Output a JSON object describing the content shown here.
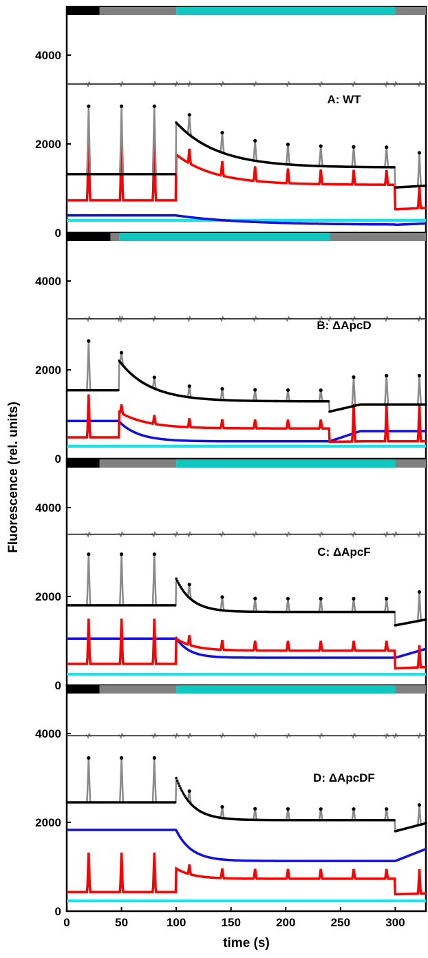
{
  "colors": {
    "measured": "#000000",
    "fitted": "#8a8a8a",
    "residual": "#8a8a8a",
    "red": "#ff0000",
    "blue": "#1010e0",
    "cyan": "#10e8f0",
    "bar_dark": "#000000",
    "bar_gray": "#808080",
    "bar_actinic": "#10c8c0"
  },
  "chart_data": {
    "type": "line",
    "xlabel": "time (s)",
    "ylabel": "Fluorescence (rel. units)",
    "xlim": [
      0,
      328
    ],
    "ylim": [
      0,
      4900
    ],
    "x_ticks": [
      0,
      50,
      100,
      150,
      200,
      250,
      300
    ],
    "y_ticks": [
      0,
      2000,
      4000
    ],
    "pulse_times": [
      20,
      50,
      80,
      112,
      142,
      172,
      202,
      232,
      262,
      292,
      322
    ],
    "panels": [
      {
        "label": "A: WT",
        "light_bar": [
          {
            "start": 0,
            "end": 30,
            "color": "dark"
          },
          {
            "start": 30,
            "end": 100,
            "color": "gray"
          },
          {
            "start": 100,
            "end": 300,
            "color": "actinic"
          },
          {
            "start": 300,
            "end": 328,
            "color": "gray"
          }
        ],
        "light_on": 100,
        "light_off": 300,
        "measured": {
          "pre": 1320,
          "jump": 2480,
          "plateau": 1470,
          "tau": 38,
          "post": 1020,
          "post_recover": 1060,
          "pulse_peak_pre": 2850,
          "pulse_height_light": 450,
          "pulse_height_post": 750
        },
        "red": {
          "pre": 730,
          "jump": 1760,
          "plateau": 1080,
          "tau": 35,
          "post": 530,
          "post_recover": 560,
          "pulse_peak_pre": 2280,
          "pulse_height_light": 330,
          "pulse_height_post": 500
        },
        "blue": {
          "pre": 390,
          "jump": 390,
          "plateau": 180,
          "tau": 60,
          "post": 180,
          "post_recover": 210
        },
        "cyan": 280,
        "residual_level": 3350
      },
      {
        "label": "B: ΔApcD",
        "light_bar": [
          {
            "start": 0,
            "end": 40,
            "color": "dark"
          },
          {
            "start": 40,
            "end": 48,
            "color": "gray"
          },
          {
            "start": 48,
            "end": 240,
            "color": "actinic"
          },
          {
            "start": 240,
            "end": 328,
            "color": "gray"
          }
        ],
        "light_on": 48,
        "light_off": 240,
        "measured": {
          "pre": 1540,
          "jump": 2200,
          "plateau": 1290,
          "tau": 28,
          "post": 1060,
          "post_recover": 1220,
          "pulse_peak_pre": 2650,
          "pulse_height_light": 250,
          "pulse_height_post": 650
        },
        "red": {
          "pre": 480,
          "jump": 1050,
          "plateau": 680,
          "tau": 25,
          "post": 380,
          "post_recover": 390,
          "pulse_peak_pre": 1450,
          "pulse_height_light": 200,
          "pulse_height_post": 850
        },
        "blue": {
          "pre": 850,
          "jump": 830,
          "plateau": 390,
          "tau": 18,
          "post": 390,
          "post_recover": 620
        },
        "cyan": 280,
        "residual_level": 3150
      },
      {
        "label": "C: ΔApcF",
        "light_bar": [
          {
            "start": 0,
            "end": 30,
            "color": "dark"
          },
          {
            "start": 30,
            "end": 100,
            "color": "gray"
          },
          {
            "start": 100,
            "end": 300,
            "color": "actinic"
          },
          {
            "start": 300,
            "end": 328,
            "color": "gray"
          }
        ],
        "light_on": 100,
        "light_off": 300,
        "measured": {
          "pre": 1800,
          "jump": 2400,
          "plateau": 1650,
          "tau": 14,
          "post": 1350,
          "post_recover": 1480,
          "pulse_peak_pre": 2950,
          "pulse_height_light": 300,
          "pulse_height_post": 650
        },
        "red": {
          "pre": 480,
          "jump": 1050,
          "plateau": 780,
          "tau": 16,
          "post": 380,
          "post_recover": 410,
          "pulse_peak_pre": 1500,
          "pulse_height_light": 220,
          "pulse_height_post": 500
        },
        "blue": {
          "pre": 1050,
          "jump": 1060,
          "plateau": 620,
          "tau": 12,
          "post": 620,
          "post_recover": 820
        },
        "cyan": 250,
        "residual_level": 3400
      },
      {
        "label": "D: ΔApcDF",
        "light_bar": [
          {
            "start": 0,
            "end": 30,
            "color": "dark"
          },
          {
            "start": 30,
            "end": 100,
            "color": "gray"
          },
          {
            "start": 100,
            "end": 300,
            "color": "actinic"
          },
          {
            "start": 300,
            "end": 328,
            "color": "gray"
          }
        ],
        "light_on": 100,
        "light_off": 300,
        "measured": {
          "pre": 2450,
          "jump": 3000,
          "plateau": 2050,
          "tau": 14,
          "post": 1800,
          "post_recover": 1980,
          "pulse_peak_pre": 3450,
          "pulse_height_light": 250,
          "pulse_height_post": 450
        },
        "red": {
          "pre": 430,
          "jump": 960,
          "plateau": 730,
          "tau": 15,
          "post": 380,
          "post_recover": 400,
          "pulse_peak_pre": 1320,
          "pulse_height_light": 220,
          "pulse_height_post": 550
        },
        "blue": {
          "pre": 1830,
          "jump": 1820,
          "plateau": 1130,
          "tau": 14,
          "post": 1130,
          "post_recover": 1400
        },
        "cyan": 230,
        "residual_level": 3950
      }
    ]
  }
}
